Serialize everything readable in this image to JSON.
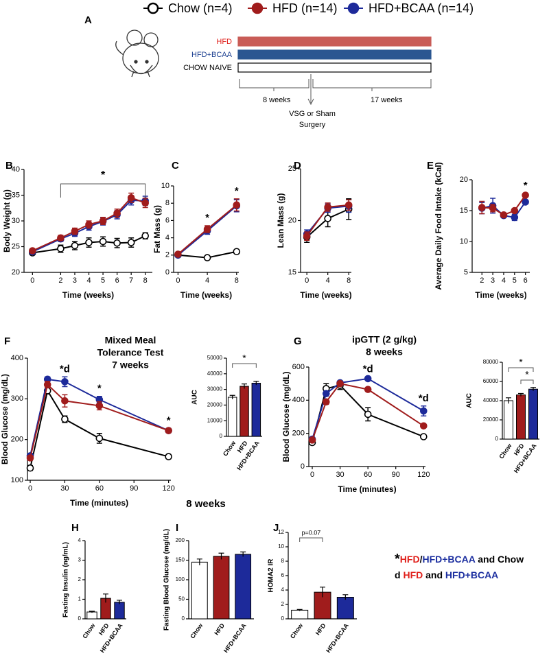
{
  "legend": [
    {
      "name": "Chow (n=4)",
      "color": "#000000",
      "marker": "open"
    },
    {
      "name": "HFD (n=14)",
      "color": "#a01c1c",
      "marker": "filled"
    },
    {
      "name": "HFD+BCAA (n=14)",
      "color": "#1d2a9a",
      "marker": "filled"
    }
  ],
  "panel_a": {
    "label": "A",
    "diets": [
      {
        "name": "HFD",
        "color": "#c95c57",
        "text_color": "#e0201b"
      },
      {
        "name": "HFD+BCAA",
        "color": "#2b5691",
        "text_color": "#1c3f90"
      },
      {
        "name": "CHOW NAIVE",
        "color": "#ffffff",
        "text_color": "#000000"
      }
    ],
    "periods": [
      "8 weeks",
      "17 weeks"
    ],
    "event": [
      "VSG or Sham",
      "Surgery"
    ]
  },
  "heading": "8 weeks",
  "footnote": [
    [
      {
        "text": "*",
        "color": "#000000"
      },
      {
        "text": "HFD",
        "color": "#e0201b"
      },
      {
        "text": "/",
        "color": "#000000"
      },
      {
        "text": "HFD+BCAA",
        "color": "#1c2fa0"
      },
      {
        "text": " and Chow",
        "color": "#000000"
      }
    ],
    [
      {
        "text": "d ",
        "color": "#000000"
      },
      {
        "text": "HFD",
        "color": "#e0201b"
      },
      {
        "text": " and ",
        "color": "#000000"
      },
      {
        "text": "HFD+BCAA",
        "color": "#1c2fa0"
      }
    ]
  ],
  "chart_data": [
    {
      "type": "line",
      "panel": "B",
      "ylabel": "Body Weight (g)",
      "xlabel": "Time (weeks)",
      "x": [
        0,
        2,
        3,
        4,
        5,
        6,
        7,
        8
      ],
      "xlim": [
        -0.6,
        8.5
      ],
      "xticks": [
        0,
        2,
        3,
        4,
        5,
        6,
        7,
        8
      ],
      "ylim": [
        20,
        40
      ],
      "yticks": [
        20,
        25,
        30,
        35,
        40
      ],
      "series": [
        {
          "color": "#000000",
          "marker": "open",
          "values": [
            23.8,
            24.6,
            25.2,
            25.8,
            26.0,
            25.7,
            25.8,
            27.1
          ],
          "errors": [
            0.3,
            0.7,
            0.8,
            0.9,
            0.9,
            0.9,
            0.9,
            0.6
          ]
        },
        {
          "color": "#1d2a9a",
          "marker": "filled",
          "values": [
            24.0,
            26.5,
            27.6,
            28.9,
            29.9,
            31.2,
            34.0,
            33.9
          ],
          "errors": [
            0.3,
            0.5,
            0.6,
            0.7,
            0.7,
            0.8,
            0.9,
            0.9
          ]
        },
        {
          "color": "#a01c1c",
          "marker": "filled",
          "values": [
            24.2,
            26.7,
            28.0,
            29.3,
            30.0,
            31.5,
            34.5,
            33.5
          ],
          "errors": [
            0.3,
            0.5,
            0.6,
            0.7,
            0.7,
            0.8,
            0.9,
            0.9
          ]
        }
      ],
      "annotations": [
        {
          "text": "*",
          "x": [
            2,
            8
          ]
        }
      ]
    },
    {
      "type": "line",
      "panel": "C",
      "ylabel": "Fat Mass (g)",
      "xlabel": "Time (weeks)",
      "x": [
        0,
        4,
        8
      ],
      "xlim": [
        -0.6,
        8.3
      ],
      "xticks": [
        0,
        4,
        8
      ],
      "ylim": [
        0,
        10
      ],
      "yticks": [
        0,
        2,
        4,
        6,
        8,
        10
      ],
      "series": [
        {
          "color": "#000000",
          "marker": "open",
          "values": [
            2.0,
            1.7,
            2.4
          ],
          "errors": [
            0.1,
            0.1,
            0.1
          ]
        },
        {
          "color": "#1d2a9a",
          "marker": "filled",
          "values": [
            2.0,
            4.8,
            7.7
          ],
          "errors": [
            0.1,
            0.4,
            0.7
          ]
        },
        {
          "color": "#a01c1c",
          "marker": "filled",
          "values": [
            2.1,
            5.0,
            7.8
          ],
          "errors": [
            0.1,
            0.4,
            0.7
          ]
        }
      ],
      "annotations": [
        {
          "text": "*",
          "x": 4
        },
        {
          "text": "*",
          "x": 8
        }
      ]
    },
    {
      "type": "line",
      "panel": "D",
      "ylabel": "Lean Mass (g)",
      "xlabel": "Time (weeks)",
      "x": [
        0,
        4,
        8
      ],
      "xlim": [
        -1.2,
        8.5
      ],
      "xticks": [
        0,
        4,
        8
      ],
      "ylim": [
        15,
        25
      ],
      "yticks": [
        15,
        20,
        25
      ],
      "series": [
        {
          "color": "#000000",
          "marker": "open",
          "values": [
            18.4,
            20.2,
            21.1
          ],
          "errors": [
            0.5,
            0.8,
            1.0
          ]
        },
        {
          "color": "#1d2a9a",
          "marker": "filled",
          "values": [
            18.7,
            21.2,
            21.4
          ],
          "errors": [
            0.4,
            0.4,
            0.6
          ]
        },
        {
          "color": "#a01c1c",
          "marker": "filled",
          "values": [
            18.5,
            21.3,
            21.5
          ],
          "errors": [
            0.4,
            0.4,
            0.5
          ]
        }
      ]
    },
    {
      "type": "line",
      "panel": "E",
      "ylabel": "Average Daily Food Intake (kCal)",
      "xlabel": "Time (weeks)",
      "x": [
        2,
        3,
        4,
        5,
        6
      ],
      "xlim": [
        1.1,
        6.4
      ],
      "xticks": [
        2,
        3,
        4,
        5,
        6
      ],
      "ylim": [
        5,
        20
      ],
      "yticks": [
        5,
        10,
        15,
        20
      ],
      "series": [
        {
          "color": "#1d2a9a",
          "marker": "filled",
          "values": [
            15.4,
            15.8,
            14.2,
            13.9,
            16.4
          ],
          "errors": [
            0.9,
            1.2,
            0.3,
            0.5,
            0.3
          ]
        },
        {
          "color": "#a01c1c",
          "marker": "filled",
          "values": [
            15.5,
            15.4,
            14.3,
            15.0,
            17.5
          ],
          "errors": [
            1.0,
            0.6,
            0.3,
            0.3,
            0.3
          ]
        }
      ],
      "annotations": [
        {
          "text": "*",
          "x": 6
        }
      ]
    },
    {
      "type": "line",
      "panel": "F",
      "title": [
        "Mixed Meal",
        "Tolerance Test",
        "7 weeks"
      ],
      "ylabel": "Blood Glucose (mg/dL)",
      "xlabel": "Time (minutes)",
      "x": [
        0,
        15,
        30,
        60,
        120
      ],
      "xlim": [
        -2.4,
        122
      ],
      "xticks": [
        0,
        30,
        60,
        90,
        120
      ],
      "ylim": [
        100,
        400
      ],
      "yticks": [
        100,
        200,
        300,
        400
      ],
      "series": [
        {
          "color": "#000000",
          "marker": "open",
          "values": [
            130,
            320,
            250,
            203,
            158
          ],
          "errors": [
            6,
            8,
            8,
            12,
            5
          ]
        },
        {
          "color": "#1d2a9a",
          "marker": "filled",
          "values": [
            160,
            348,
            342,
            298,
            222
          ],
          "errors": [
            6,
            6,
            12,
            8,
            5
          ]
        },
        {
          "color": "#a01c1c",
          "marker": "filled",
          "values": [
            155,
            335,
            295,
            283,
            222
          ],
          "errors": [
            6,
            8,
            15,
            10,
            5
          ]
        }
      ],
      "annotations": [
        {
          "text": "*d",
          "x": 30
        },
        {
          "text": "*",
          "x": 60
        },
        {
          "text": "*",
          "x": 120
        }
      ]
    },
    {
      "type": "bar",
      "ylabel": "AUC",
      "categories": [
        "Chow",
        "HFD",
        "HFD+BCAA"
      ],
      "values": [
        25000,
        32000,
        34000
      ],
      "errors": [
        1200,
        1500,
        1200
      ],
      "colors": [
        "#ffffff",
        "#a01c1c",
        "#1d2a9a"
      ],
      "ylim": [
        0,
        50000
      ],
      "yticks": [
        0,
        10000,
        20000,
        30000,
        40000,
        50000
      ],
      "annotations": [
        {
          "text": "*",
          "categories": [
            "Chow",
            "HFD+BCAA"
          ]
        }
      ]
    },
    {
      "type": "line",
      "panel": "G",
      "title": [
        "ipGTT (2 g/kg)",
        "8 weeks"
      ],
      "ylabel": "Blood Glucose (mg/dL)",
      "xlabel": "Time (minutes)",
      "x": [
        0,
        15,
        30,
        60,
        120
      ],
      "xlim": [
        -3.7,
        122
      ],
      "xticks": [
        0,
        30,
        60,
        90,
        120
      ],
      "ylim": [
        0,
        600
      ],
      "yticks": [
        0,
        200,
        400,
        600
      ],
      "series": [
        {
          "color": "#000000",
          "marker": "open",
          "values": [
            145,
            470,
            490,
            315,
            180
          ],
          "errors": [
            10,
            30,
            25,
            40,
            8
          ]
        },
        {
          "color": "#1d2a9a",
          "marker": "filled",
          "values": [
            165,
            440,
            505,
            530,
            335
          ],
          "errors": [
            10,
            15,
            12,
            10,
            30
          ]
        },
        {
          "color": "#a01c1c",
          "marker": "filled",
          "values": [
            160,
            390,
            500,
            465,
            245
          ],
          "errors": [
            10,
            15,
            12,
            8,
            8
          ]
        }
      ],
      "annotations": [
        {
          "text": "*d",
          "x": 60
        },
        {
          "text": "*d",
          "x": 120
        }
      ]
    },
    {
      "type": "bar",
      "ylabel": "AUC",
      "categories": [
        "Chow",
        "HFD",
        "HFD+BCAA"
      ],
      "values": [
        40000,
        46000,
        52000
      ],
      "errors": [
        3000,
        1500,
        1800
      ],
      "colors": [
        "#ffffff",
        "#a01c1c",
        "#1d2a9a"
      ],
      "ylim": [
        0,
        80000
      ],
      "yticks": [
        0,
        20000,
        40000,
        60000,
        80000
      ],
      "annotations": [
        {
          "text": "*",
          "categories": [
            "Chow",
            "HFD+BCAA"
          ]
        },
        {
          "text": "*",
          "categories": [
            "HFD",
            "HFD+BCAA"
          ]
        }
      ]
    },
    {
      "type": "bar",
      "panel": "H",
      "ylabel": "Fasting Insulin (ng/mL)",
      "categories": [
        "Chow",
        "HFD",
        "HFD+BCAA"
      ],
      "values": [
        0.35,
        1.05,
        0.85
      ],
      "errors": [
        0.04,
        0.22,
        0.1
      ],
      "colors": [
        "#ffffff",
        "#a01c1c",
        "#1d2a9a"
      ],
      "ylim": [
        0,
        4
      ],
      "yticks": [
        0,
        1,
        2,
        3,
        4
      ]
    },
    {
      "type": "bar",
      "panel": "I",
      "ylabel": "Fasting Blood Glucose (mg/dL)",
      "categories": [
        "Chow",
        "HFD",
        "HFD+BCAA"
      ],
      "values": [
        145,
        160,
        165
      ],
      "errors": [
        8,
        8,
        6
      ],
      "colors": [
        "#ffffff",
        "#a01c1c",
        "#1d2a9a"
      ],
      "ylim": [
        0,
        200
      ],
      "yticks": [
        0,
        50,
        100,
        150,
        200
      ]
    },
    {
      "type": "bar",
      "panel": "J",
      "ylabel": "HOMA2 IR",
      "categories": [
        "Chow",
        "HFD",
        "HFD+BCAA"
      ],
      "values": [
        1.2,
        3.7,
        3.0
      ],
      "errors": [
        0.1,
        0.7,
        0.35
      ],
      "colors": [
        "#ffffff",
        "#a01c1c",
        "#1d2a9a"
      ],
      "ylim": [
        0,
        12
      ],
      "yticks": [
        0,
        2,
        4,
        6,
        8,
        10,
        12
      ],
      "annotations": [
        {
          "text": "p=0.07",
          "categories": [
            "Chow",
            "HFD"
          ]
        }
      ]
    }
  ]
}
